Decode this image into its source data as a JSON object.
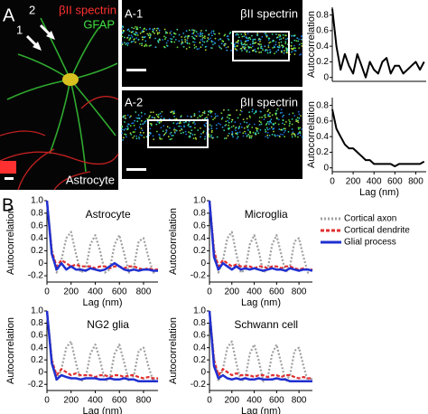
{
  "panel_a": {
    "label": "A",
    "arrow_1": "1",
    "arrow_2": "2",
    "stain_red": "βII spectrin",
    "stain_green": "GFAP",
    "cell": "Astrocyte",
    "inset_1": {
      "label": "A-1",
      "stain": "βII spectrin"
    },
    "inset_2": {
      "label": "A-2",
      "stain": "βII spectrin"
    }
  },
  "panel_b": {
    "label": "B"
  },
  "legend": {
    "series": [
      {
        "name": "Cortical axon",
        "color": "#a0a0a0",
        "dash": "2,2"
      },
      {
        "name": "Cortical dendrite",
        "color": "#e03030",
        "dash": "4,2"
      },
      {
        "name": "Glial process",
        "color": "#2030d0",
        "dash": "none"
      }
    ]
  },
  "chart_data": [
    {
      "type": "line",
      "ylabel": "Autocorrelation",
      "xlim": [
        0,
        900
      ],
      "ylim": [
        -0.05,
        0.9
      ],
      "yticks": [
        0,
        0.2,
        0.4,
        0.6,
        0.8
      ],
      "x": [
        0,
        40,
        80,
        120,
        160,
        200,
        240,
        280,
        320,
        360,
        400,
        440,
        480,
        520,
        560,
        600,
        640,
        680,
        720,
        760,
        800,
        840,
        880
      ],
      "series": [
        {
          "color": "#000000",
          "values": [
            0.88,
            0.4,
            0.1,
            0.3,
            0.15,
            0.05,
            0.3,
            0.15,
            0.0,
            0.2,
            0.1,
            0.05,
            0.2,
            0.25,
            0.05,
            0.15,
            0.15,
            0.05,
            0.1,
            0.15,
            0.2,
            0.1,
            0.2
          ]
        }
      ]
    },
    {
      "type": "line",
      "ylabel": "Autocorrelation",
      "xlabel": "Lag (nm)",
      "xlim": [
        0,
        900
      ],
      "ylim": [
        -0.05,
        0.9
      ],
      "yticks": [
        0,
        0.2,
        0.4,
        0.6,
        0.8
      ],
      "xticks": [
        0,
        200,
        400,
        600,
        800
      ],
      "x": [
        0,
        40,
        80,
        120,
        160,
        200,
        240,
        280,
        320,
        360,
        400,
        440,
        480,
        520,
        560,
        600,
        640,
        680,
        720,
        760,
        800,
        840,
        880
      ],
      "series": [
        {
          "color": "#000000",
          "values": [
            0.75,
            0.5,
            0.4,
            0.3,
            0.25,
            0.25,
            0.2,
            0.15,
            0.1,
            0.1,
            0.05,
            0.05,
            0.05,
            0.05,
            0.05,
            0.02,
            0.05,
            0.05,
            0.05,
            0.05,
            0.05,
            0.05,
            0.08
          ]
        }
      ]
    },
    {
      "type": "line",
      "title": "Astrocyte",
      "ylabel": "Autocorrelation",
      "xlabel": "Lag (nm)",
      "xlim": [
        0,
        920
      ],
      "ylim": [
        -0.3,
        1.0
      ],
      "yticks": [
        {
          "value": 1,
          "label": "1.0"
        },
        0.8,
        0.6,
        0.4,
        0.2,
        0,
        -0.2
      ],
      "xticks": [
        0,
        200,
        400,
        600,
        800
      ],
      "x": [
        0,
        40,
        80,
        120,
        160,
        200,
        240,
        280,
        320,
        360,
        400,
        440,
        480,
        520,
        560,
        600,
        640,
        680,
        720,
        760,
        800,
        840,
        880,
        920
      ],
      "series": [
        {
          "values": [
            1.0,
            0.25,
            -0.15,
            0.05,
            0.4,
            0.5,
            0.15,
            -0.15,
            -0.1,
            0.3,
            0.45,
            0.2,
            -0.15,
            -0.1,
            0.3,
            0.45,
            0.15,
            -0.15,
            -0.05,
            0.35,
            0.4,
            0.1,
            -0.15,
            -0.1
          ]
        },
        {
          "values": [
            1.0,
            0.2,
            -0.05,
            0.05,
            0.0,
            -0.05,
            -0.02,
            -0.05,
            -0.05,
            -0.05,
            -0.08,
            -0.05,
            -0.05,
            -0.08,
            -0.05,
            -0.05,
            -0.08,
            -0.05,
            -0.05,
            -0.08,
            -0.1,
            -0.08,
            -0.1,
            -0.1
          ]
        },
        {
          "values": [
            1.0,
            0.15,
            -0.1,
            0.0,
            -0.1,
            -0.05,
            -0.1,
            -0.1,
            -0.12,
            -0.08,
            -0.1,
            -0.12,
            -0.1,
            -0.05,
            0.0,
            -0.05,
            -0.1,
            -0.12,
            -0.1,
            -0.12,
            -0.1,
            -0.1,
            -0.12,
            -0.12
          ]
        }
      ]
    },
    {
      "type": "line",
      "title": "Microglia",
      "ylabel": "Autocorrelation",
      "xlabel": "Lag (nm)",
      "xlim": [
        0,
        920
      ],
      "ylim": [
        -0.3,
        1.0
      ],
      "yticks": [
        {
          "value": 1,
          "label": "1.0"
        },
        0.8,
        0.6,
        0.4,
        0.2,
        0,
        -0.2
      ],
      "xticks": [
        0,
        200,
        400,
        600,
        800
      ],
      "x": [
        0,
        40,
        80,
        120,
        160,
        200,
        240,
        280,
        320,
        360,
        400,
        440,
        480,
        520,
        560,
        600,
        640,
        680,
        720,
        760,
        800,
        840,
        880,
        920
      ],
      "series": [
        {
          "values": [
            1.0,
            0.25,
            -0.15,
            0.05,
            0.4,
            0.5,
            0.15,
            -0.15,
            -0.1,
            0.3,
            0.45,
            0.2,
            -0.15,
            -0.1,
            0.3,
            0.45,
            0.15,
            -0.15,
            -0.05,
            0.35,
            0.4,
            0.1,
            -0.15,
            -0.1
          ]
        },
        {
          "values": [
            1.0,
            0.2,
            -0.05,
            0.05,
            0.0,
            -0.05,
            -0.02,
            -0.05,
            -0.05,
            -0.05,
            -0.08,
            -0.05,
            -0.05,
            -0.08,
            -0.05,
            -0.05,
            -0.08,
            -0.05,
            -0.05,
            -0.08,
            -0.1,
            -0.08,
            -0.1,
            -0.1
          ]
        },
        {
          "values": [
            1.0,
            0.1,
            -0.1,
            0.0,
            -0.05,
            -0.1,
            -0.05,
            -0.1,
            -0.08,
            -0.1,
            -0.08,
            -0.1,
            -0.12,
            -0.1,
            -0.08,
            -0.1,
            -0.1,
            -0.12,
            -0.08,
            -0.1,
            -0.12,
            -0.1,
            -0.1,
            -0.12
          ]
        }
      ]
    },
    {
      "type": "line",
      "title": "NG2 glia",
      "ylabel": "Autocorrelation",
      "xlabel": "Lag (nm)",
      "xlim": [
        0,
        920
      ],
      "ylim": [
        -0.3,
        1.0
      ],
      "yticks": [
        {
          "value": 1,
          "label": "1.0"
        },
        0.8,
        0.6,
        0.4,
        0.2,
        0,
        -0.2
      ],
      "xticks": [
        0,
        200,
        400,
        600,
        800
      ],
      "x": [
        0,
        40,
        80,
        120,
        160,
        200,
        240,
        280,
        320,
        360,
        400,
        440,
        480,
        520,
        560,
        600,
        640,
        680,
        720,
        760,
        800,
        840,
        880,
        920
      ],
      "series": [
        {
          "values": [
            1.0,
            0.25,
            -0.15,
            0.05,
            0.4,
            0.5,
            0.15,
            -0.15,
            -0.1,
            0.3,
            0.45,
            0.2,
            -0.15,
            -0.1,
            0.3,
            0.45,
            0.15,
            -0.15,
            -0.05,
            0.35,
            0.4,
            0.1,
            -0.15,
            -0.1
          ]
        },
        {
          "values": [
            1.0,
            0.2,
            -0.05,
            0.05,
            0.0,
            -0.05,
            -0.02,
            -0.05,
            -0.05,
            -0.05,
            -0.08,
            -0.05,
            -0.05,
            -0.08,
            -0.05,
            -0.05,
            -0.08,
            -0.05,
            -0.05,
            -0.08,
            -0.1,
            -0.08,
            -0.1,
            -0.1
          ]
        },
        {
          "values": [
            1.0,
            0.15,
            -0.12,
            -0.05,
            -0.08,
            -0.1,
            -0.1,
            -0.12,
            -0.1,
            -0.1,
            -0.1,
            -0.12,
            -0.12,
            -0.1,
            -0.12,
            -0.12,
            -0.1,
            -0.12,
            -0.12,
            -0.15,
            -0.15,
            -0.15,
            -0.15,
            -0.15
          ]
        }
      ]
    },
    {
      "type": "line",
      "title": "Schwann cell",
      "ylabel": "Autocorrelation",
      "xlabel": "Lag (nm)",
      "xlim": [
        0,
        920
      ],
      "ylim": [
        -0.3,
        1.0
      ],
      "yticks": [
        {
          "value": 1,
          "label": "1.0"
        },
        0.8,
        0.6,
        0.4,
        0.2,
        0,
        -0.2
      ],
      "xticks": [
        0,
        200,
        400,
        600,
        800
      ],
      "x": [
        0,
        40,
        80,
        120,
        160,
        200,
        240,
        280,
        320,
        360,
        400,
        440,
        480,
        520,
        560,
        600,
        640,
        680,
        720,
        760,
        800,
        840,
        880,
        920
      ],
      "series": [
        {
          "values": [
            1.0,
            0.25,
            -0.15,
            0.05,
            0.4,
            0.5,
            0.15,
            -0.15,
            -0.1,
            0.3,
            0.45,
            0.2,
            -0.15,
            -0.1,
            0.3,
            0.45,
            0.15,
            -0.15,
            -0.05,
            0.35,
            0.4,
            0.1,
            -0.15,
            -0.1
          ]
        },
        {
          "values": [
            1.0,
            0.2,
            -0.05,
            0.05,
            0.0,
            -0.05,
            -0.02,
            -0.05,
            -0.05,
            -0.05,
            -0.08,
            -0.05,
            -0.05,
            -0.08,
            -0.05,
            -0.05,
            -0.08,
            -0.05,
            -0.05,
            -0.08,
            -0.1,
            -0.08,
            -0.1,
            -0.1
          ]
        },
        {
          "values": [
            1.0,
            0.1,
            -0.1,
            -0.05,
            -0.1,
            -0.12,
            -0.1,
            -0.12,
            -0.1,
            -0.12,
            -0.12,
            -0.1,
            -0.12,
            -0.12,
            -0.12,
            -0.1,
            -0.12,
            -0.12,
            -0.15,
            -0.15,
            -0.15,
            -0.15,
            -0.15,
            -0.15
          ]
        }
      ]
    }
  ]
}
